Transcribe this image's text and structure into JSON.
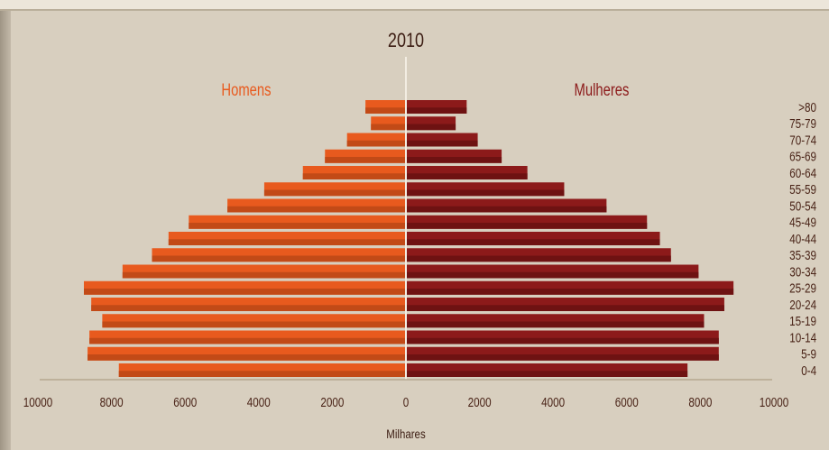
{
  "chart_data": {
    "type": "bar",
    "title": "2010",
    "xlabel": "Milhares",
    "ylabel": "",
    "orientation": "horizontal-pyramid",
    "xlim": [
      -10000,
      10000
    ],
    "x_ticks": [
      "10000",
      "8000",
      "6000",
      "4000",
      "2000",
      "0",
      "2000",
      "4000",
      "6000",
      "8000",
      "10000"
    ],
    "categories": [
      "0-4",
      "5-9",
      "10-14",
      "15-19",
      "20-24",
      "25-29",
      "30-34",
      "35-39",
      "40-44",
      "45-49",
      "50-54",
      "55-59",
      "60-64",
      "65-69",
      "70-74",
      "75-79",
      ">80"
    ],
    "series": [
      {
        "name": "Homens",
        "color": "#e85a1e",
        "values": [
          7800,
          8650,
          8600,
          8250,
          8550,
          8750,
          7700,
          6900,
          6450,
          5900,
          4850,
          3850,
          2800,
          2200,
          1600,
          950,
          1100
        ]
      },
      {
        "name": "Mulheres",
        "color": "#8c1a1a",
        "values": [
          7650,
          8500,
          8500,
          8100,
          8650,
          8900,
          7950,
          7200,
          6900,
          6550,
          5450,
          4300,
          3300,
          2600,
          1950,
          1350,
          1650
        ]
      }
    ]
  }
}
